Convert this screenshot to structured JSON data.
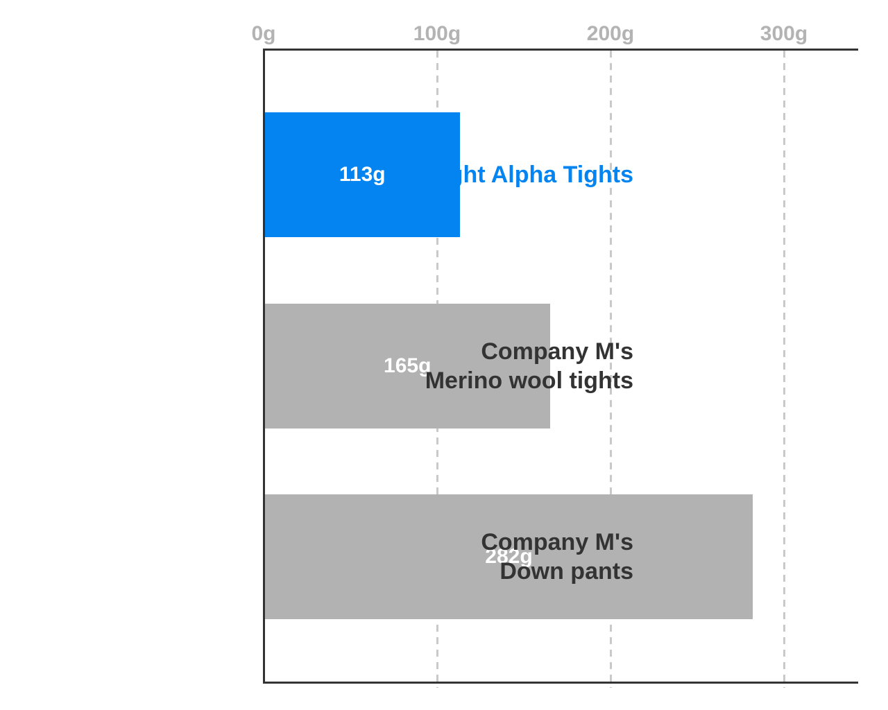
{
  "chart_data": {
    "type": "bar",
    "orientation": "horizontal",
    "title": "",
    "xlabel": "",
    "ylabel": "",
    "unit": "g",
    "categories": [
      "Light Alpha Tights",
      "Company M's\nMerino wool tights",
      "Company M's\nDown pants"
    ],
    "values": [
      113,
      165,
      282
    ],
    "value_labels": [
      "113g",
      "165g",
      "282g"
    ],
    "bar_colors": [
      "#0484f0",
      "#b2b2b2",
      "#b2b2b2"
    ],
    "category_label_colors": [
      "#0484f0",
      "#333333",
      "#333333"
    ],
    "highlight_index": 0,
    "x_ticks": [
      {
        "value": 0,
        "label": "0g"
      },
      {
        "value": 100,
        "label": "100g"
      },
      {
        "value": 200,
        "label": "200g"
      },
      {
        "value": 300,
        "label": "300g"
      }
    ],
    "xlim": [
      0,
      342
    ],
    "grid": "dashed-vertical",
    "legend": "none"
  },
  "colors": {
    "accent_blue": "#0484f0",
    "bar_gray": "#b2b2b2",
    "axis_dark": "#333333",
    "tick_text_gray": "#b3b3b3",
    "gridline_gray": "#c9c9c9",
    "value_text": "#ffffff",
    "background": "#ffffff"
  }
}
